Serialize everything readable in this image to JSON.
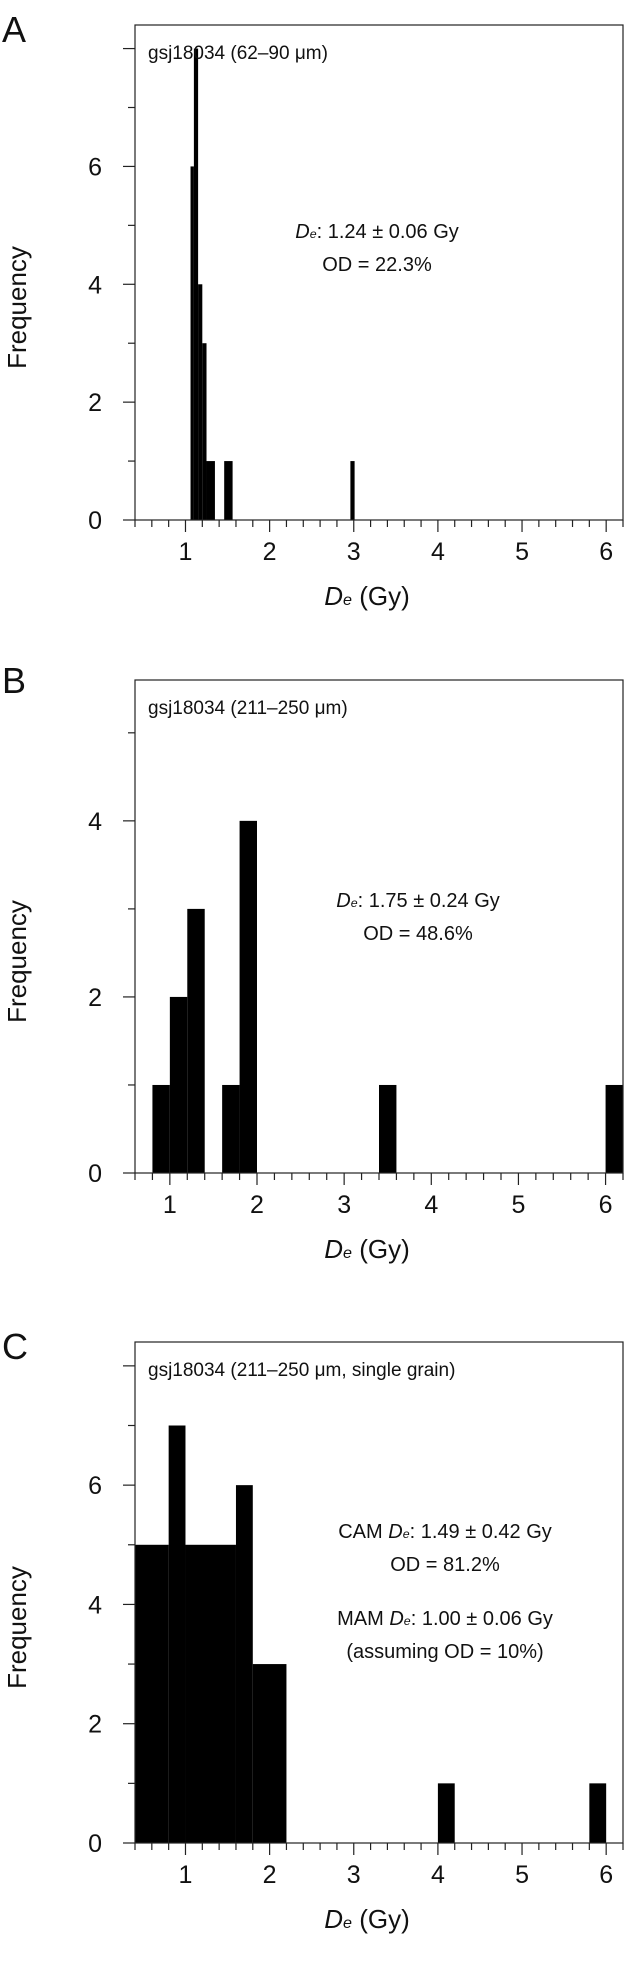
{
  "chart_data": [
    {
      "type": "bar",
      "panel_letter": "A",
      "sample_label": "gsj18034 (62–90 μm)",
      "annotations": [
        {
          "sym": "D",
          "sub": "e",
          "text": ": 1.24 ± 0.06 Gy"
        },
        {
          "text": "OD = 22.3%"
        }
      ],
      "xlabel": {
        "sym": "D",
        "sub": "e",
        "text": " (Gy)"
      },
      "ylabel": "Frequency",
      "xlim": [
        0.4,
        6.2
      ],
      "ylim": [
        0,
        8.4
      ],
      "xticks": [
        1,
        2,
        3,
        4,
        5,
        6
      ],
      "yticks": [
        0,
        2,
        4,
        6
      ],
      "bars": [
        {
          "x0": 1.06,
          "x1": 1.1,
          "y": 6
        },
        {
          "x0": 1.1,
          "x1": 1.15,
          "y": 8
        },
        {
          "x0": 1.15,
          "x1": 1.2,
          "y": 4
        },
        {
          "x0": 1.2,
          "x1": 1.25,
          "y": 3
        },
        {
          "x0": 1.25,
          "x1": 1.35,
          "y": 1
        },
        {
          "x0": 1.46,
          "x1": 1.56,
          "y": 1
        },
        {
          "x0": 2.96,
          "x1": 3.01,
          "y": 1
        }
      ]
    },
    {
      "type": "bar",
      "panel_letter": "B",
      "sample_label": "gsj18034 (211–250 μm)",
      "annotations": [
        {
          "sym": "D",
          "sub": "e",
          "text": ": 1.75  ± 0.24 Gy"
        },
        {
          "text": "OD = 48.6%"
        }
      ],
      "xlabel": {
        "sym": "D",
        "sub": "e",
        "text": " (Gy)"
      },
      "ylabel": "Frequency",
      "xlim": [
        0.6,
        6.2
      ],
      "ylim": [
        0,
        5.6
      ],
      "xticks": [
        1,
        2,
        3,
        4,
        5,
        6
      ],
      "yticks": [
        0,
        2,
        4
      ],
      "bars": [
        {
          "x0": 0.8,
          "x1": 1.0,
          "y": 1
        },
        {
          "x0": 1.0,
          "x1": 1.2,
          "y": 2
        },
        {
          "x0": 1.2,
          "x1": 1.4,
          "y": 3
        },
        {
          "x0": 1.6,
          "x1": 1.8,
          "y": 1
        },
        {
          "x0": 1.8,
          "x1": 2.0,
          "y": 4
        },
        {
          "x0": 3.4,
          "x1": 3.6,
          "y": 1
        },
        {
          "x0": 6.0,
          "x1": 6.2,
          "y": 1
        }
      ]
    },
    {
      "type": "bar",
      "panel_letter": "C",
      "sample_label": "gsj18034 (211–250 μm, single grain)",
      "annotations": [
        {
          "sym": "D",
          "sub": "e",
          "prefix": "CAM ",
          "text": ": 1.49 ± 0.42 Gy"
        },
        {
          "text": "OD = 81.2%"
        },
        {
          "sym": "D",
          "sub": "e",
          "prefix": "MAM ",
          "text": ": 1.00 ± 0.06 Gy"
        },
        {
          "text": "(assuming OD = 10%)"
        }
      ],
      "xlabel": {
        "sym": "D",
        "sub": "e",
        "text": " (Gy)"
      },
      "ylabel": "Frequency",
      "xlim": [
        0.4,
        6.2
      ],
      "ylim": [
        0,
        8.4
      ],
      "xticks": [
        1,
        2,
        3,
        4,
        5,
        6
      ],
      "yticks": [
        0,
        2,
        4,
        6
      ],
      "bars": [
        {
          "x0": 0.4,
          "x1": 0.8,
          "y": 5
        },
        {
          "x0": 0.8,
          "x1": 1.0,
          "y": 7
        },
        {
          "x0": 1.0,
          "x1": 1.6,
          "y": 5
        },
        {
          "x0": 1.6,
          "x1": 1.8,
          "y": 6
        },
        {
          "x0": 1.8,
          "x1": 2.2,
          "y": 3
        },
        {
          "x0": 4.0,
          "x1": 4.2,
          "y": 1
        },
        {
          "x0": 5.8,
          "x1": 6.0,
          "y": 1
        }
      ]
    }
  ]
}
